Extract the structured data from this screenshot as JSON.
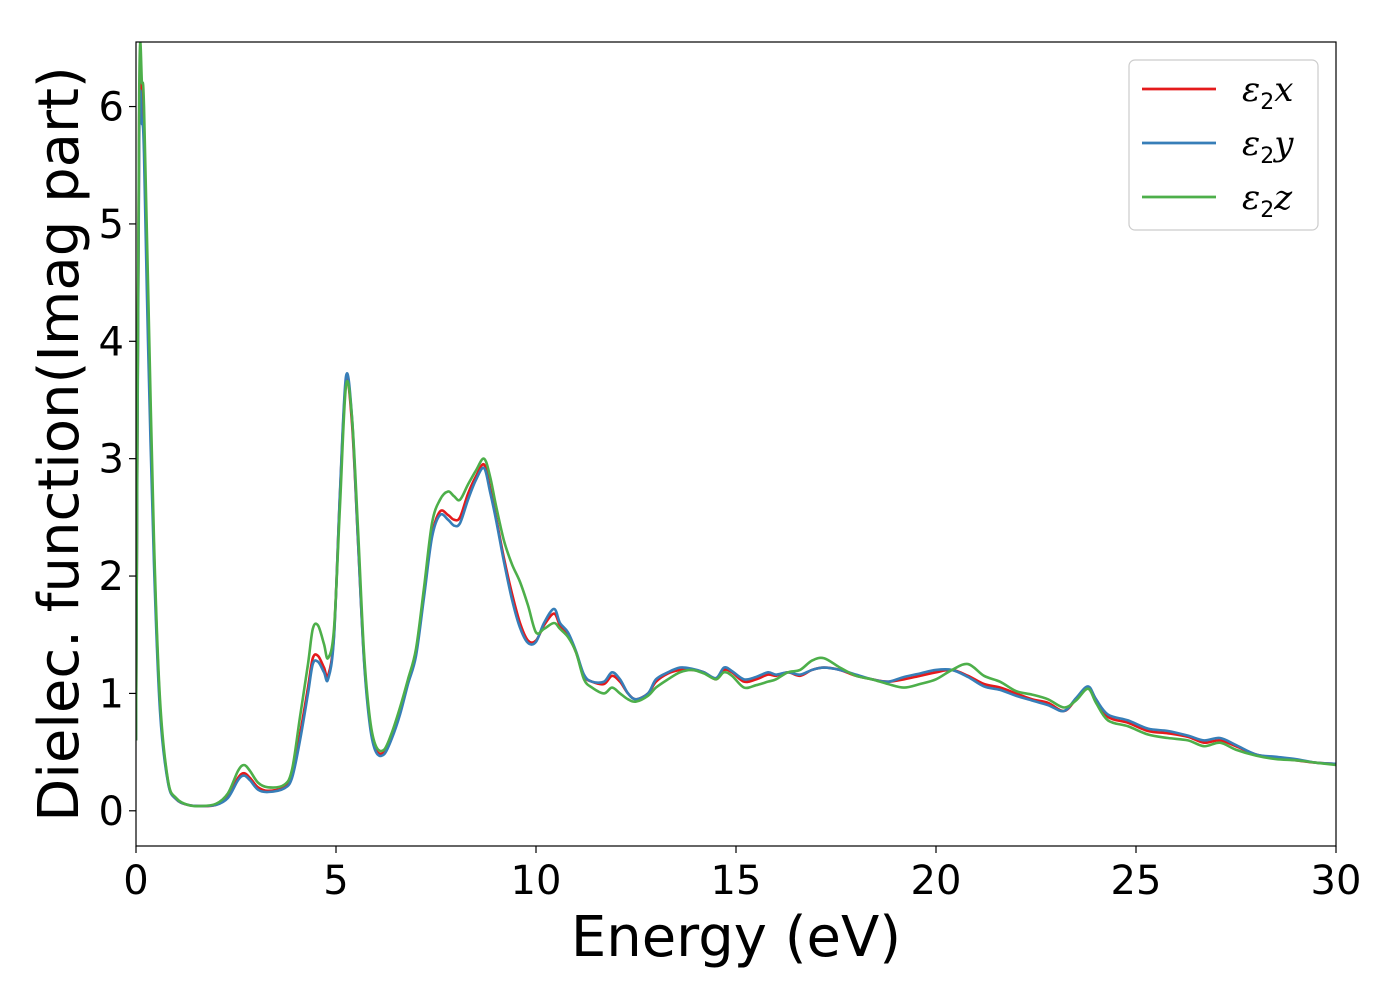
{
  "chart_data": {
    "type": "line",
    "xlabel": "Energy (eV)",
    "ylabel": "Dielec. function(Imag part)",
    "xlim": [
      0,
      30
    ],
    "ylim": [
      -0.3,
      6.55
    ],
    "xticks": [
      0,
      5,
      10,
      15,
      20,
      25,
      30
    ],
    "yticks": [
      0,
      1,
      2,
      3,
      4,
      5,
      6
    ],
    "grid": false,
    "legend_position": "top-right",
    "series": [
      {
        "name": "x",
        "legend_base": "ε",
        "legend_sub": "2",
        "legend_suffix": "x",
        "color": "#e41a1c",
        "x": [
          0,
          0.08,
          0.15,
          0.2,
          0.3,
          0.45,
          0.6,
          0.8,
          1.0,
          1.3,
          1.6,
          2.0,
          2.3,
          2.55,
          2.7,
          2.85,
          3.05,
          3.3,
          3.7,
          3.9,
          4.1,
          4.3,
          4.42,
          4.55,
          4.7,
          4.8,
          4.95,
          5.1,
          5.25,
          5.4,
          5.55,
          5.7,
          5.85,
          6.0,
          6.2,
          6.4,
          6.6,
          6.8,
          7.0,
          7.2,
          7.4,
          7.6,
          7.8,
          7.95,
          8.1,
          8.3,
          8.5,
          8.7,
          8.85,
          9.0,
          9.2,
          9.4,
          9.6,
          9.8,
          10.0,
          10.2,
          10.45,
          10.6,
          10.8,
          11.0,
          11.2,
          11.4,
          11.7,
          11.9,
          12.1,
          12.3,
          12.5,
          12.8,
          13.0,
          13.3,
          13.6,
          13.9,
          14.2,
          14.5,
          14.7,
          14.9,
          15.2,
          15.5,
          15.8,
          16.0,
          16.3,
          16.6,
          16.9,
          17.2,
          17.6,
          18.0,
          18.4,
          18.8,
          19.2,
          19.6,
          20.0,
          20.4,
          20.8,
          21.2,
          21.6,
          22.0,
          22.4,
          22.8,
          23.2,
          23.5,
          23.8,
          24.0,
          24.3,
          24.8,
          25.3,
          25.8,
          26.3,
          26.7,
          27.1,
          27.5,
          28.0,
          28.5,
          29.0,
          29.5,
          30.0
        ],
        "y": [
          0.6,
          5.9,
          6.0,
          5.8,
          4.2,
          2.2,
          0.9,
          0.25,
          0.1,
          0.05,
          0.04,
          0.05,
          0.12,
          0.28,
          0.32,
          0.28,
          0.2,
          0.17,
          0.2,
          0.3,
          0.65,
          1.05,
          1.3,
          1.32,
          1.22,
          1.15,
          1.5,
          2.7,
          3.65,
          3.3,
          2.3,
          1.3,
          0.75,
          0.52,
          0.5,
          0.65,
          0.85,
          1.1,
          1.35,
          1.85,
          2.35,
          2.55,
          2.52,
          2.48,
          2.5,
          2.7,
          2.85,
          2.95,
          2.75,
          2.5,
          2.15,
          1.85,
          1.6,
          1.45,
          1.45,
          1.58,
          1.68,
          1.58,
          1.5,
          1.35,
          1.15,
          1.1,
          1.08,
          1.15,
          1.1,
          1.0,
          0.95,
          1.0,
          1.1,
          1.17,
          1.2,
          1.2,
          1.18,
          1.12,
          1.2,
          1.18,
          1.1,
          1.12,
          1.16,
          1.15,
          1.18,
          1.15,
          1.2,
          1.22,
          1.2,
          1.15,
          1.12,
          1.1,
          1.12,
          1.15,
          1.18,
          1.2,
          1.15,
          1.08,
          1.05,
          1.0,
          0.95,
          0.92,
          0.85,
          0.95,
          1.05,
          0.95,
          0.8,
          0.75,
          0.68,
          0.66,
          0.63,
          0.58,
          0.6,
          0.55,
          0.48,
          0.45,
          0.43,
          0.41,
          0.4
        ]
      },
      {
        "name": "y",
        "legend_base": "ε",
        "legend_sub": "2",
        "legend_suffix": "y",
        "color": "#377eb8",
        "x": [
          0,
          0.08,
          0.15,
          0.2,
          0.3,
          0.45,
          0.6,
          0.8,
          1.0,
          1.3,
          1.6,
          2.0,
          2.3,
          2.55,
          2.7,
          2.85,
          3.05,
          3.3,
          3.7,
          3.9,
          4.1,
          4.3,
          4.42,
          4.55,
          4.7,
          4.8,
          4.95,
          5.1,
          5.25,
          5.4,
          5.55,
          5.7,
          5.85,
          6.0,
          6.2,
          6.4,
          6.6,
          6.8,
          7.0,
          7.2,
          7.4,
          7.6,
          7.8,
          7.95,
          8.1,
          8.3,
          8.5,
          8.7,
          8.85,
          9.0,
          9.2,
          9.4,
          9.6,
          9.8,
          10.0,
          10.2,
          10.45,
          10.6,
          10.8,
          11.0,
          11.2,
          11.4,
          11.7,
          11.9,
          12.1,
          12.3,
          12.5,
          12.8,
          13.0,
          13.3,
          13.6,
          13.9,
          14.2,
          14.5,
          14.7,
          14.9,
          15.2,
          15.5,
          15.8,
          16.0,
          16.3,
          16.6,
          16.9,
          17.2,
          17.6,
          18.0,
          18.4,
          18.8,
          19.2,
          19.6,
          20.0,
          20.4,
          20.8,
          21.2,
          21.6,
          22.0,
          22.4,
          22.8,
          23.2,
          23.5,
          23.8,
          24.0,
          24.3,
          24.8,
          25.3,
          25.8,
          26.3,
          26.7,
          27.1,
          27.5,
          28.0,
          28.5,
          29.0,
          29.5,
          30.0
        ],
        "y": [
          0.6,
          5.7,
          5.85,
          5.6,
          4.0,
          2.1,
          0.85,
          0.24,
          0.1,
          0.05,
          0.04,
          0.05,
          0.11,
          0.26,
          0.3,
          0.26,
          0.18,
          0.16,
          0.19,
          0.28,
          0.6,
          1.0,
          1.25,
          1.27,
          1.18,
          1.12,
          1.48,
          2.72,
          3.7,
          3.35,
          2.3,
          1.28,
          0.72,
          0.5,
          0.48,
          0.62,
          0.82,
          1.08,
          1.32,
          1.82,
          2.33,
          2.52,
          2.48,
          2.43,
          2.45,
          2.65,
          2.82,
          2.92,
          2.72,
          2.48,
          2.12,
          1.8,
          1.56,
          1.43,
          1.44,
          1.6,
          1.72,
          1.6,
          1.52,
          1.36,
          1.16,
          1.1,
          1.1,
          1.18,
          1.12,
          1.0,
          0.95,
          1.0,
          1.12,
          1.18,
          1.22,
          1.21,
          1.18,
          1.13,
          1.22,
          1.19,
          1.12,
          1.14,
          1.18,
          1.16,
          1.18,
          1.16,
          1.2,
          1.22,
          1.2,
          1.16,
          1.12,
          1.1,
          1.14,
          1.17,
          1.2,
          1.2,
          1.14,
          1.06,
          1.03,
          0.98,
          0.94,
          0.9,
          0.85,
          0.96,
          1.06,
          0.95,
          0.82,
          0.77,
          0.7,
          0.68,
          0.64,
          0.6,
          0.62,
          0.56,
          0.48,
          0.46,
          0.44,
          0.41,
          0.4
        ]
      },
      {
        "name": "z",
        "legend_base": "ε",
        "legend_sub": "2",
        "legend_suffix": "z",
        "color": "#4daf4a",
        "x": [
          0,
          0.08,
          0.15,
          0.2,
          0.3,
          0.45,
          0.6,
          0.8,
          1.0,
          1.3,
          1.6,
          2.0,
          2.3,
          2.55,
          2.7,
          2.85,
          3.05,
          3.3,
          3.7,
          3.9,
          4.1,
          4.3,
          4.42,
          4.55,
          4.7,
          4.8,
          4.95,
          5.1,
          5.25,
          5.4,
          5.55,
          5.7,
          5.85,
          6.0,
          6.2,
          6.4,
          6.6,
          6.8,
          7.0,
          7.2,
          7.4,
          7.6,
          7.8,
          7.95,
          8.1,
          8.3,
          8.5,
          8.7,
          8.85,
          9.0,
          9.2,
          9.4,
          9.6,
          9.8,
          10.0,
          10.2,
          10.45,
          10.6,
          10.8,
          11.0,
          11.2,
          11.4,
          11.7,
          11.9,
          12.1,
          12.3,
          12.5,
          12.8,
          13.0,
          13.3,
          13.6,
          13.9,
          14.2,
          14.5,
          14.7,
          14.9,
          15.2,
          15.5,
          15.8,
          16.0,
          16.3,
          16.6,
          16.9,
          17.2,
          17.6,
          18.0,
          18.4,
          18.8,
          19.2,
          19.6,
          20.0,
          20.4,
          20.8,
          21.2,
          21.6,
          22.0,
          22.4,
          22.8,
          23.2,
          23.5,
          23.8,
          24.0,
          24.3,
          24.8,
          25.3,
          25.8,
          26.3,
          26.7,
          27.1,
          27.5,
          28.0,
          28.5,
          29.0,
          29.5,
          30.0
        ],
        "y": [
          0.6,
          6.1,
          6.2,
          6.0,
          4.5,
          2.3,
          0.95,
          0.26,
          0.11,
          0.05,
          0.04,
          0.06,
          0.15,
          0.34,
          0.39,
          0.34,
          0.24,
          0.2,
          0.22,
          0.35,
          0.8,
          1.25,
          1.55,
          1.58,
          1.42,
          1.3,
          1.55,
          2.6,
          3.62,
          3.35,
          2.4,
          1.35,
          0.78,
          0.55,
          0.52,
          0.67,
          0.88,
          1.12,
          1.38,
          1.9,
          2.45,
          2.65,
          2.72,
          2.68,
          2.65,
          2.78,
          2.9,
          3.0,
          2.85,
          2.6,
          2.3,
          2.1,
          1.95,
          1.75,
          1.52,
          1.55,
          1.6,
          1.55,
          1.48,
          1.35,
          1.12,
          1.05,
          1.0,
          1.05,
          1.0,
          0.95,
          0.93,
          0.98,
          1.05,
          1.12,
          1.18,
          1.2,
          1.17,
          1.12,
          1.18,
          1.15,
          1.05,
          1.07,
          1.1,
          1.12,
          1.18,
          1.2,
          1.28,
          1.3,
          1.22,
          1.15,
          1.12,
          1.08,
          1.05,
          1.08,
          1.12,
          1.2,
          1.25,
          1.15,
          1.1,
          1.02,
          0.99,
          0.95,
          0.88,
          0.94,
          1.04,
          0.92,
          0.77,
          0.72,
          0.65,
          0.62,
          0.6,
          0.55,
          0.58,
          0.52,
          0.47,
          0.44,
          0.43,
          0.41,
          0.39
        ]
      }
    ]
  }
}
